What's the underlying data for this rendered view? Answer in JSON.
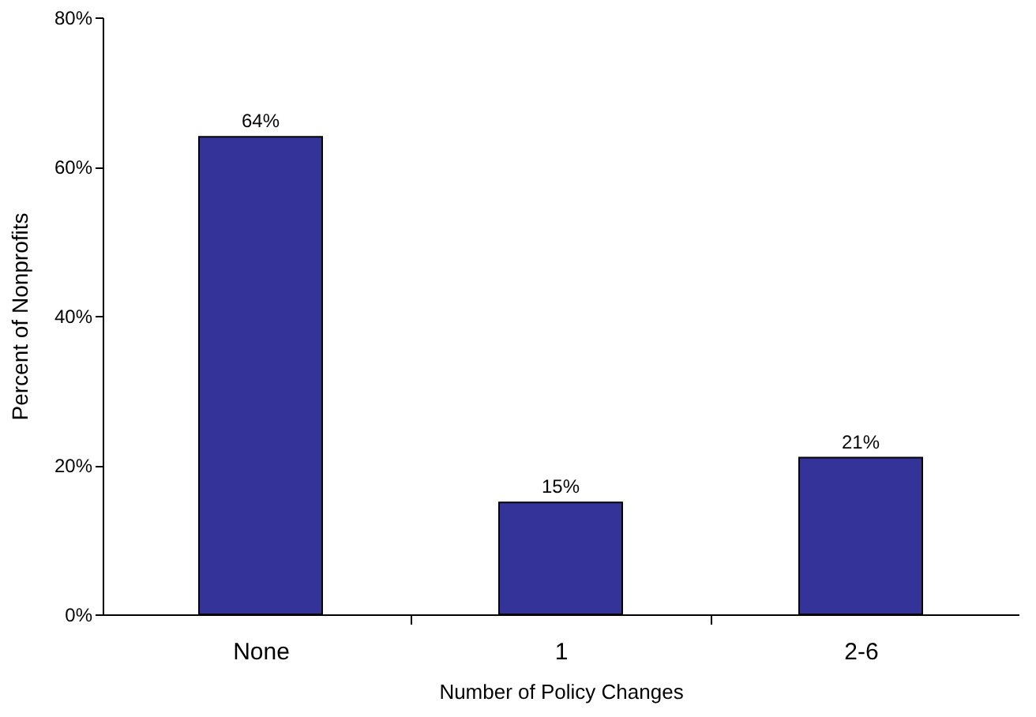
{
  "chart_data": {
    "type": "bar",
    "categories": [
      "None",
      "1",
      "2-6"
    ],
    "values": [
      64,
      15,
      21
    ],
    "value_labels": [
      "64%",
      "15%",
      "21%"
    ],
    "color": "#333399",
    "xlabel": "Number of Policy Changes",
    "ylabel": "Percent of Nonprofits",
    "ylim": [
      0,
      80
    ],
    "yticks": [
      {
        "value": 0,
        "label": "0%"
      },
      {
        "value": 20,
        "label": "20%"
      },
      {
        "value": 40,
        "label": "40%"
      },
      {
        "value": 60,
        "label": "60%"
      },
      {
        "value": 80,
        "label": "80%"
      }
    ],
    "grid": false
  }
}
